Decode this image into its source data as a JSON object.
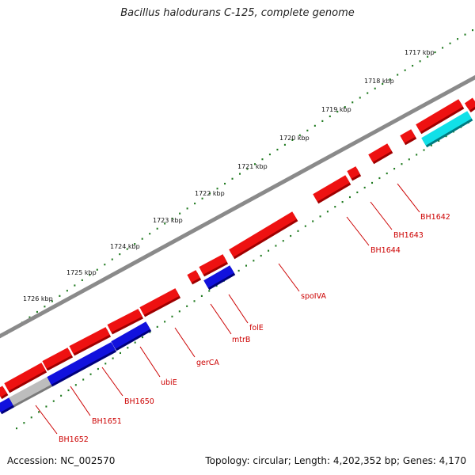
{
  "title": "Bacillus halodurans C-125, complete genome",
  "footer": {
    "accession": "Accession: NC_002570",
    "summary": "Topology: circular; Length: 4,202,352 bp; Genes: 4,170"
  },
  "colors": {
    "backbone": "#8a8a8a",
    "tick": "#1f7a1f",
    "forward_gene": "#ee1111",
    "reverse_gene": "#1111dd",
    "reverse_gray": "#bdbdbd",
    "reverse_cyan": "#11e0e8",
    "gene_label": "#cc0000"
  },
  "kbp_labels": [
    "1717 kbp",
    "1718 kbp",
    "1719 kbp",
    "1720 kbp",
    "1721 kbp",
    "1722 kbp",
    "1723 kbp",
    "1724 kbp",
    "1725 kbp",
    "1726 kbp"
  ],
  "gene_labels": [
    "BH1642",
    "BH1643",
    "BH1644",
    "spoIVA",
    "folE",
    "mtrB",
    "gerCA",
    "ubiE",
    "BH1650",
    "BH1651",
    "BH1652"
  ]
}
